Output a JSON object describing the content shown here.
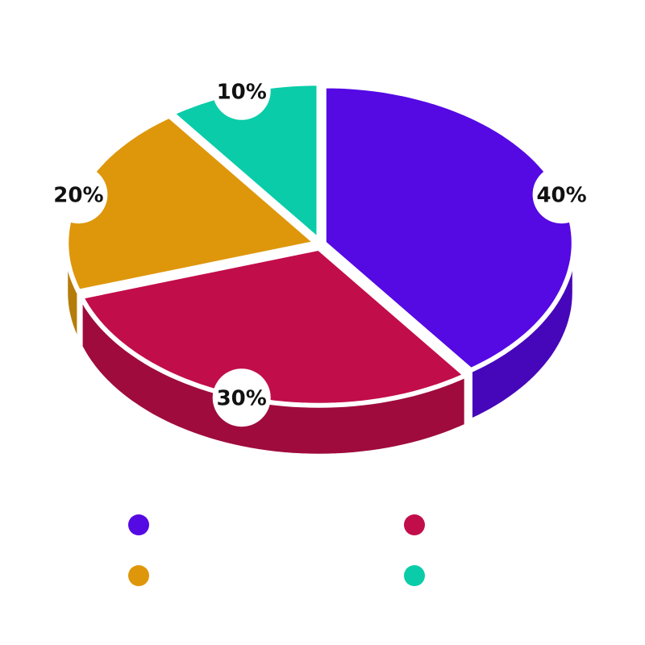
{
  "chart_data": {
    "type": "pie",
    "categories": [
      null,
      null,
      null,
      null
    ],
    "values": [
      40,
      30,
      20,
      10
    ],
    "value_labels": [
      "40%",
      "30%",
      "20%",
      "10%"
    ],
    "colors": [
      "#5509e3",
      "#c20d4b",
      "#de970b",
      "#0acca8"
    ],
    "start_angle": -90,
    "direction": "clockwise"
  }
}
